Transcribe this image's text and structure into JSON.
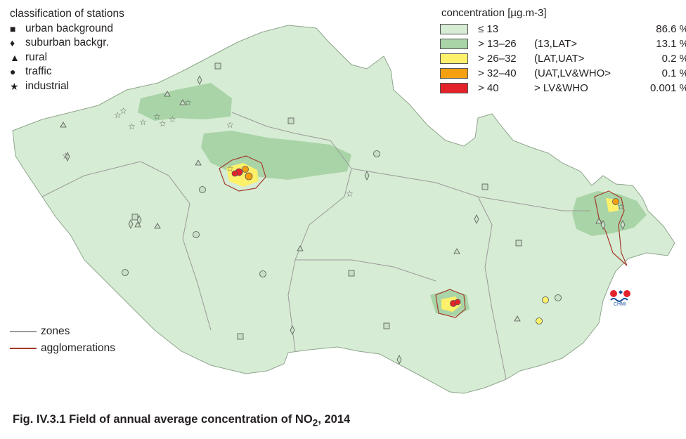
{
  "station_legend": {
    "title": "classification of stations",
    "items": [
      {
        "icon": "square",
        "label": "urban background"
      },
      {
        "icon": "diamond",
        "label": "suburban backgr."
      },
      {
        "icon": "triangle",
        "label": "rural"
      },
      {
        "icon": "circle",
        "label": "traffic"
      },
      {
        "icon": "star",
        "label": "industrial"
      }
    ]
  },
  "concentration_legend": {
    "title": "concentration [µg.m-3]",
    "classes": [
      {
        "range": "≤ 13",
        "limits": "",
        "percent": "86.6 %",
        "color": "#d6ecd4"
      },
      {
        "range": "> 13–26",
        "limits": "(13,LAT>",
        "percent": "13.1 %",
        "color": "#a9d4a7"
      },
      {
        "range": "> 26–32",
        "limits": "(LAT,UAT>",
        "percent": "0.2 %",
        "color": "#fdf06a"
      },
      {
        "range": "> 32–40",
        "limits": "(UAT,LV&WHO>",
        "percent": "0.1 %",
        "color": "#f5a011"
      },
      {
        "range": "> 40",
        "limits": " > LV&WHO",
        "percent": "0.001 %",
        "color": "#e3222a"
      }
    ]
  },
  "line_legend": {
    "items": [
      {
        "label": "zones",
        "color": "#9a9a9a"
      },
      {
        "label": "agglomerations",
        "color": "#a33a2c"
      }
    ]
  },
  "logo": {
    "text": "CHMI"
  },
  "caption": {
    "prefix": "Fig. IV.3.1  Field of annual average concentration of NO",
    "subscript": "2",
    "suffix": ", 2014"
  }
}
